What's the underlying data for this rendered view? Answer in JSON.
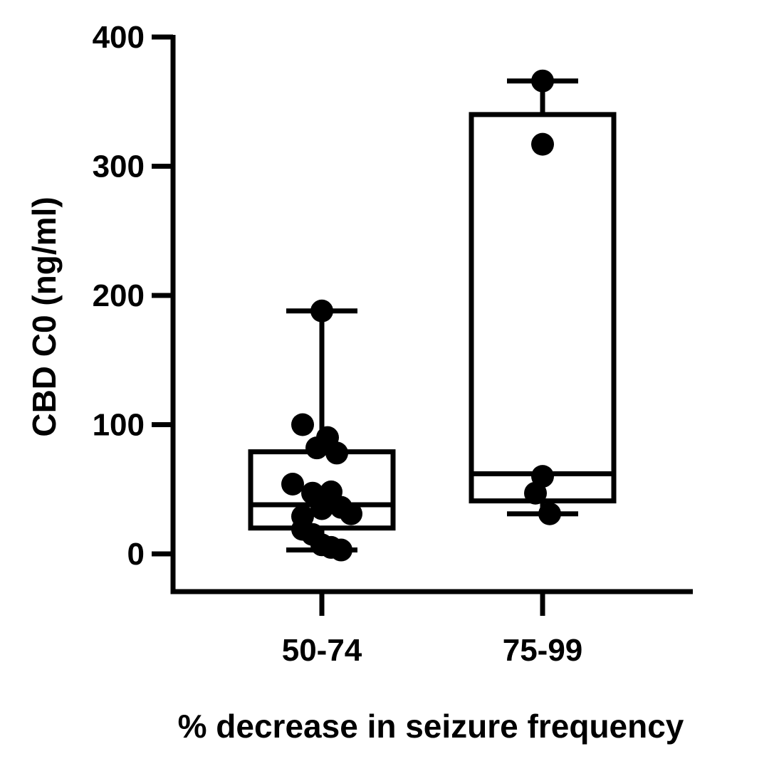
{
  "chart_data": {
    "type": "box",
    "xlabel": "% decrease in seizure frequency",
    "ylabel": "CBD C0 (ng/ml)",
    "ylim": [
      -30,
      400
    ],
    "yticks": [
      0,
      100,
      200,
      300,
      400
    ],
    "ytick_labels": [
      "0",
      "100",
      "200",
      "300",
      "400"
    ],
    "categories": [
      "50-74",
      "75-99"
    ],
    "grid": false,
    "legend": "none",
    "colors": {
      "marks": "#000000",
      "box_fill": "#ffffff"
    },
    "groups": [
      {
        "label": "50-74",
        "whisker_low": 3,
        "q1": 20,
        "median": 38,
        "q3": 79,
        "whisker_high": 188,
        "points": [
          {
            "y": 188,
            "jitter": 0
          },
          {
            "y": 100,
            "jitter": -0.27
          },
          {
            "y": 90,
            "jitter": 0.08
          },
          {
            "y": 82,
            "jitter": -0.07
          },
          {
            "y": 78,
            "jitter": 0.21
          },
          {
            "y": 54,
            "jitter": -0.41
          },
          {
            "y": 48,
            "jitter": 0.13
          },
          {
            "y": 47,
            "jitter": -0.13
          },
          {
            "y": 36,
            "jitter": 0.27
          },
          {
            "y": 35,
            "jitter": 0
          },
          {
            "y": 31,
            "jitter": 0.41
          },
          {
            "y": 29,
            "jitter": -0.27
          },
          {
            "y": 19,
            "jitter": -0.27
          },
          {
            "y": 15,
            "jitter": -0.13
          },
          {
            "y": 7,
            "jitter": 0
          },
          {
            "y": 5,
            "jitter": 0.13
          },
          {
            "y": 3,
            "jitter": 0.27
          }
        ]
      },
      {
        "label": "75-99",
        "whisker_low": 31,
        "q1": 41,
        "median": 62,
        "q3": 340,
        "whisker_high": 366,
        "points": [
          {
            "y": 366,
            "jitter": 0
          },
          {
            "y": 317,
            "jitter": 0
          },
          {
            "y": 60,
            "jitter": 0
          },
          {
            "y": 47,
            "jitter": -0.1
          },
          {
            "y": 31,
            "jitter": 0.1
          }
        ]
      }
    ]
  }
}
